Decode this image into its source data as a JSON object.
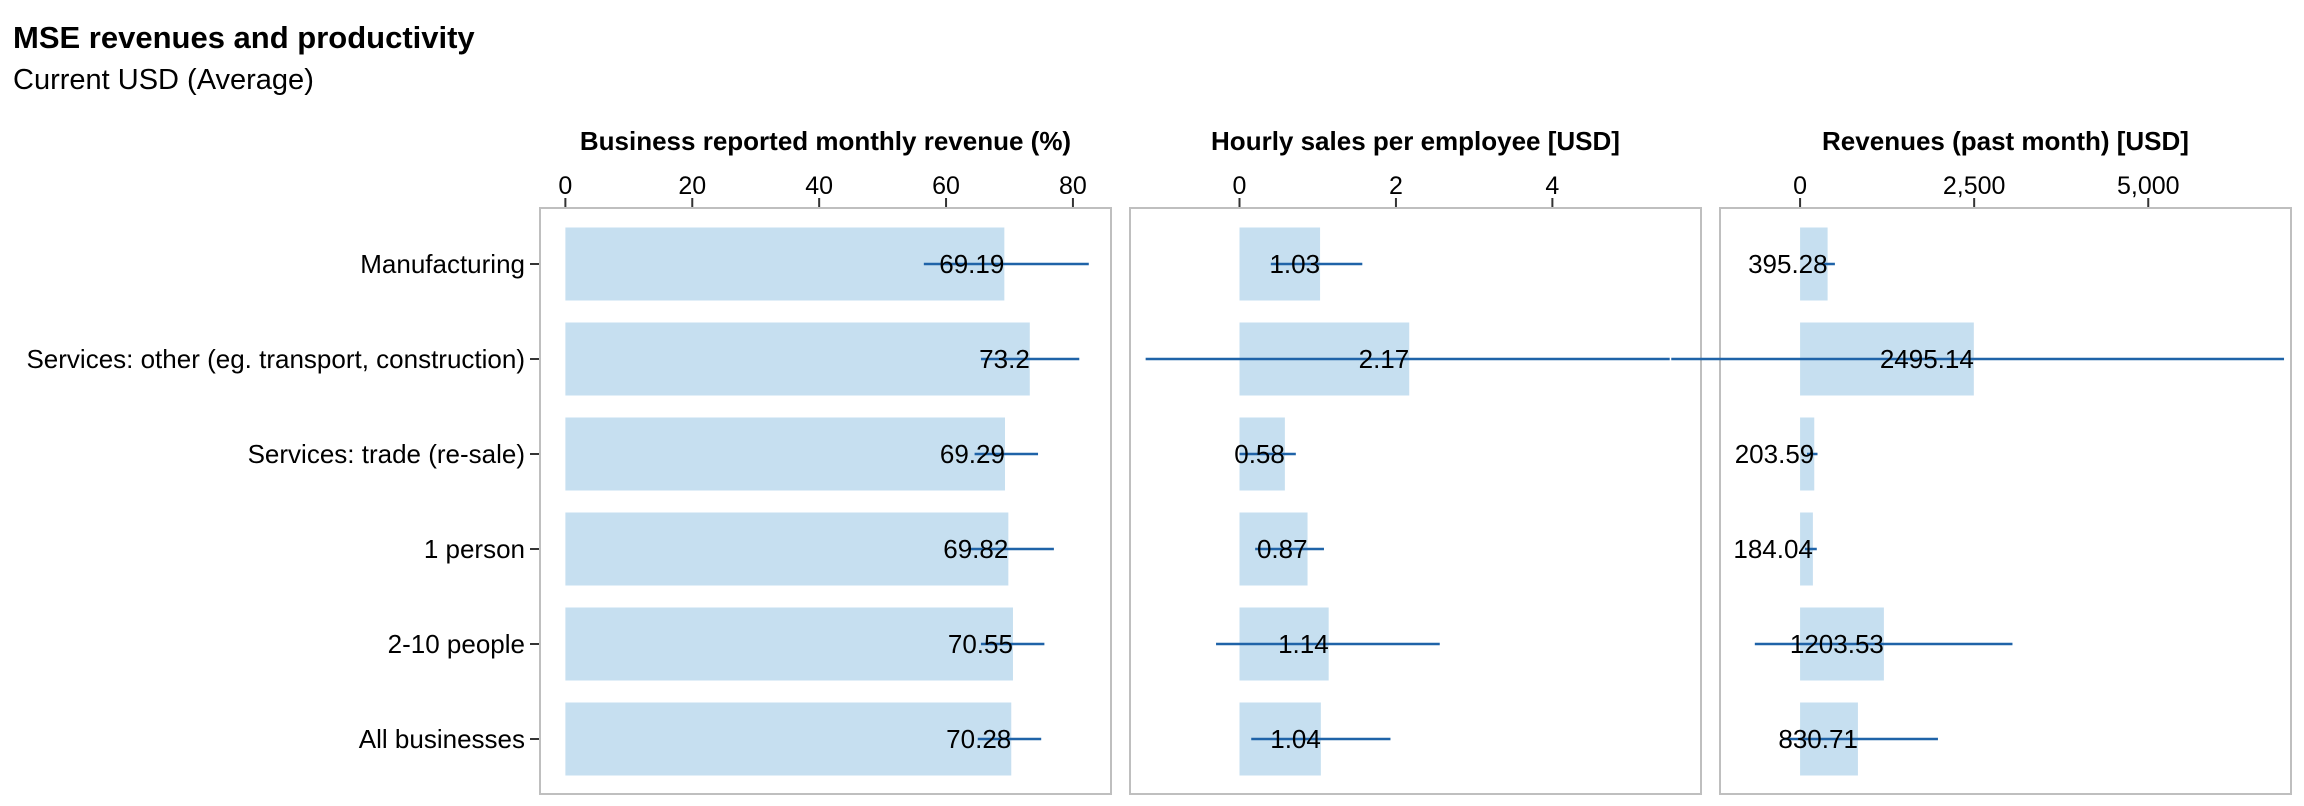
{
  "header": {
    "title": "MSE revenues and productivity",
    "subtitle": "Current USD (Average)"
  },
  "colors": {
    "bar_fill": "#c6dff0",
    "error_bar": "#1f63a8",
    "panel_border": "#bfbfbf",
    "grid": "#ffffff"
  },
  "chart_data": {
    "type": "bar",
    "orientation": "horizontal",
    "categories": [
      "Manufacturing",
      "Services: other (eg. transport, construction)",
      "Services: trade (re-sale)",
      "1 person",
      "2-10 people",
      "All businesses"
    ],
    "panels": [
      {
        "title": "Business reported monthly revenue (%)",
        "xlim": [
          -4,
          86
        ],
        "ticks": [
          0,
          20,
          40,
          60,
          80
        ],
        "tick_labels": [
          "0",
          "20",
          "40",
          "60",
          "80"
        ],
        "values": [
          69.19,
          73.2,
          69.29,
          69.82,
          70.55,
          70.28
        ],
        "labels": [
          "69.19",
          "73.2",
          "69.29",
          "69.82",
          "70.55",
          "70.28"
        ],
        "ci_low": [
          56.5,
          65.5,
          64.5,
          63.5,
          65.5,
          65.0
        ],
        "ci_high": [
          82.5,
          81.0,
          74.5,
          77.0,
          75.5,
          75.0
        ]
      },
      {
        "title": "Hourly sales per employee [USD]",
        "xlim": [
          -1.4,
          5.9
        ],
        "ticks": [
          0,
          2,
          4
        ],
        "tick_labels": [
          "0",
          "2",
          "4"
        ],
        "values": [
          1.03,
          2.17,
          0.58,
          0.87,
          1.14,
          1.04
        ],
        "labels": [
          "1.03",
          "2.17",
          "0.58",
          "0.87",
          "1.14",
          "1.04"
        ],
        "ci_low": [
          0.4,
          -1.2,
          0.0,
          0.2,
          -0.3,
          0.15
        ],
        "ci_high": [
          1.57,
          5.5,
          0.72,
          1.08,
          2.56,
          1.93
        ]
      },
      {
        "title": "Revenues (past month) [USD]",
        "xlim": [
          -1150,
          7050
        ],
        "ticks": [
          0,
          2500,
          5000
        ],
        "tick_labels": [
          "0",
          "2,500",
          "5,000"
        ],
        "values": [
          395.28,
          2495.14,
          203.59,
          184.04,
          1203.53,
          830.71
        ],
        "labels": [
          "395.28",
          "2495.14",
          "203.59",
          "184.04",
          "1203.53",
          "830.71"
        ],
        "ci_low": [
          250,
          -1850,
          100,
          70,
          -650,
          -250
        ],
        "ci_high": [
          500,
          6950,
          250,
          240,
          3050,
          1980
        ]
      }
    ]
  }
}
